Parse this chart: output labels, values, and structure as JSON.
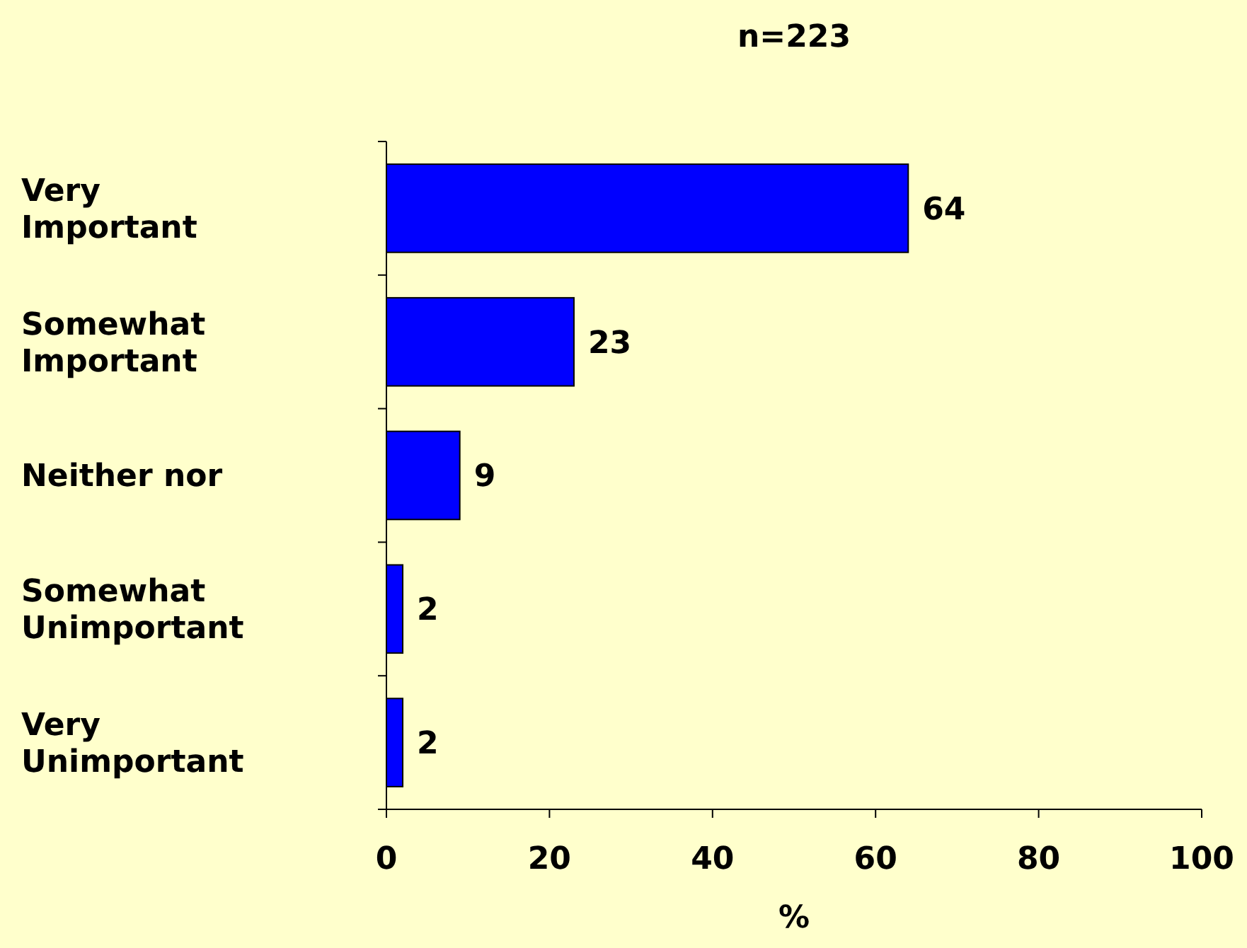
{
  "chart_data": {
    "type": "bar",
    "orientation": "horizontal",
    "title": "n=223",
    "xlabel": "%",
    "categories": [
      "Very Important",
      "Somewhat Important",
      "Neither nor",
      "Somewhat Unimportant",
      "Very Unimportant"
    ],
    "values": [
      64,
      23,
      9,
      2,
      2
    ],
    "color": "#0000ff",
    "xlim": [
      0,
      100
    ],
    "xticks": [
      0,
      20,
      40,
      60,
      80,
      100
    ],
    "data_labels": true,
    "grid": false
  }
}
